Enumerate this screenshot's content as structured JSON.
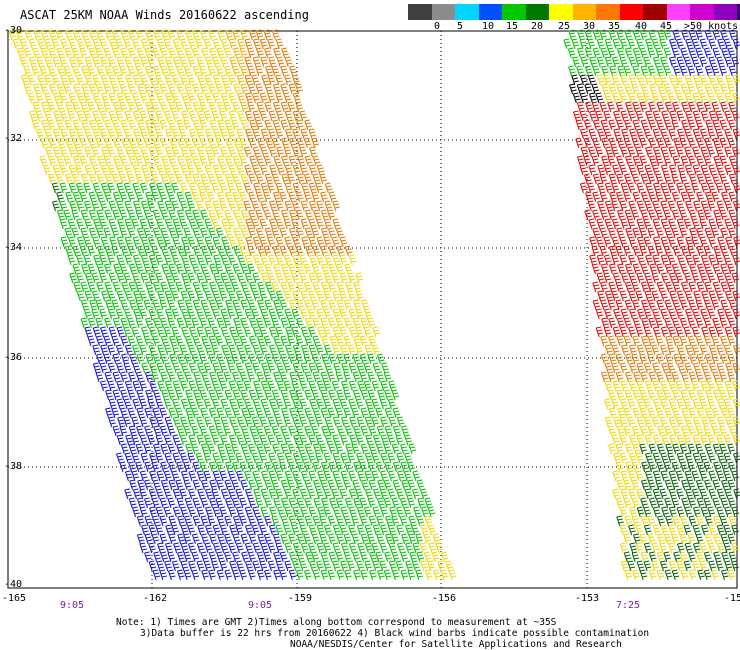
{
  "title": "ASCAT 25KM NOAA Winds 20160622 ascending",
  "colorbar": {
    "swatch_colors": [
      "#404040",
      "#8c8c8c",
      "#00d4ff",
      "#0050ff",
      "#00c800",
      "#007800",
      "#ffff00",
      "#ffb400",
      "#ff7800",
      "#ff0000",
      "#a00000",
      "#ff40ff",
      "#d000d0",
      "#9000c0",
      "#3c0070"
    ],
    "ticks": [
      "0",
      "5",
      "10",
      "15",
      "20",
      "25",
      "30",
      "35",
      "40",
      "45",
      ">50 knots"
    ]
  },
  "map": {
    "lat_labels": [
      "-30",
      "-32",
      "-34",
      "-36",
      "-38",
      "-40"
    ],
    "lon_labels": [
      "-165",
      "-162",
      "-159",
      "-156",
      "-153",
      "-15"
    ],
    "time_labels": [
      "9:05",
      "9:05",
      "7:25"
    ],
    "barb_colors": {
      "blue": "#1010d0",
      "green": "#00c000",
      "dark_green": "#006000",
      "yellow": "#f0d800",
      "light_orange": "#f0b000",
      "orange": "#e07800",
      "red": "#e00000",
      "black": "#000000"
    }
  },
  "notes": {
    "line1": "Note: 1) Times are GMT 2)Times along bottom correspond to measurement at ~35S",
    "line2": "3)Data buffer is 22 hrs from 20160622 4) Black wind barbs indicate possible contamination",
    "line3": "NOAA/NESDIS/Center for Satellite Applications and Research"
  }
}
